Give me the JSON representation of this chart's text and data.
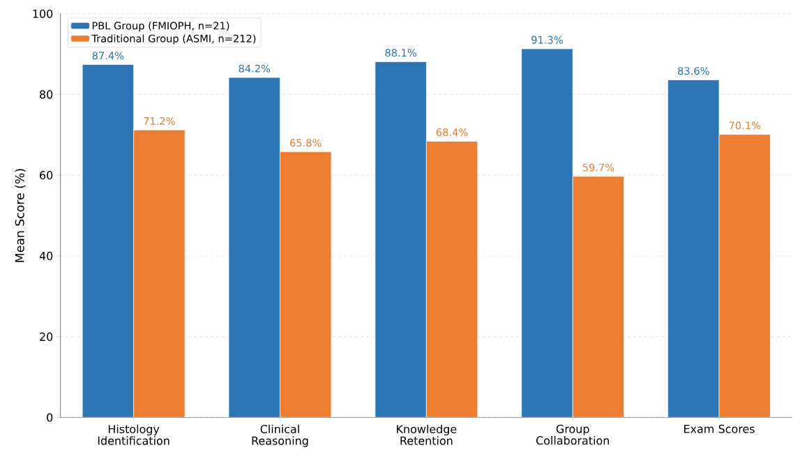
{
  "chart_data": {
    "type": "bar",
    "ylabel": "Mean Score (%)",
    "categories": [
      "Histology Identification",
      "Clinical Reasoning",
      "Knowledge Retention",
      "Group Collaboration",
      "Exam Scores"
    ],
    "series": [
      {
        "name": "PBL Group (FMIOPH, n=21)",
        "color": "#2e75b6",
        "values": [
          87.4,
          84.2,
          88.1,
          91.3,
          83.6
        ],
        "value_labels": [
          "87.4%",
          "84.2%",
          "88.1%",
          "91.3%",
          "83.6%"
        ]
      },
      {
        "name": "Traditional Group (ASMI, n=212)",
        "color": "#ed7d31",
        "values": [
          71.2,
          65.8,
          68.4,
          59.7,
          70.1
        ],
        "value_labels": [
          "71.2%",
          "65.8%",
          "68.4%",
          "59.7%",
          "70.1%"
        ]
      }
    ],
    "ylim": [
      0,
      100
    ],
    "yticks": [
      0,
      20,
      40,
      60,
      80,
      100
    ],
    "grid": "y",
    "legend": "top left"
  }
}
